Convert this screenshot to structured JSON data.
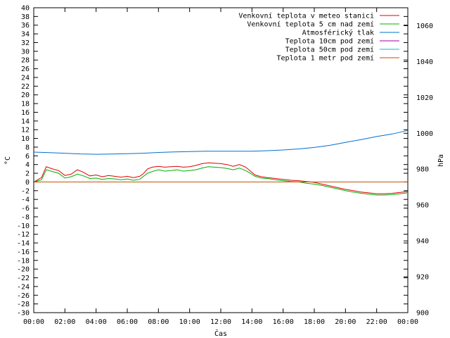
{
  "chart_data": {
    "type": "line",
    "xlabel": "Čas",
    "ylabel": "°C",
    "y2label": "hPa",
    "x_ticks": [
      "00:00",
      "02:00",
      "04:00",
      "06:00",
      "08:00",
      "10:00",
      "12:00",
      "14:00",
      "16:00",
      "18:00",
      "20:00",
      "22:00",
      "00:00"
    ],
    "xlim": [
      0,
      24
    ],
    "ylim": [
      -30,
      40
    ],
    "y_ticks": [
      40,
      38,
      36,
      34,
      32,
      30,
      28,
      26,
      24,
      22,
      20,
      18,
      16,
      14,
      12,
      10,
      8,
      6,
      4,
      2,
      0,
      -2,
      -4,
      -6,
      -8,
      -10,
      -12,
      -14,
      -16,
      -18,
      -20,
      -22,
      -24,
      -26,
      -28,
      -30
    ],
    "y2lim": [
      900,
      1070
    ],
    "y2_ticks": [
      1060,
      1040,
      1020,
      1000,
      980,
      960,
      940,
      920,
      900
    ],
    "grid": false,
    "legend_position": "top-right",
    "series": [
      {
        "name": "Venkovní teplota v meteo stanici",
        "color": "#e00000",
        "axis": "y",
        "x": [
          0,
          0.5,
          0.8,
          1.2,
          1.6,
          2,
          2.4,
          2.8,
          3.2,
          3.6,
          4,
          4.4,
          4.8,
          5.2,
          5.6,
          6,
          6.4,
          6.8,
          7,
          7.3,
          7.6,
          8,
          8.4,
          8.8,
          9.2,
          9.6,
          10,
          10.4,
          10.8,
          11.2,
          11.6,
          12,
          12.4,
          12.8,
          13.2,
          13.6,
          13.9,
          14.2,
          14.6,
          15,
          15.5,
          16,
          16.5,
          17,
          17.5,
          18,
          18.5,
          19,
          19.5,
          20,
          20.5,
          21,
          21.5,
          22,
          22.5,
          23,
          23.5,
          24
        ],
        "y": [
          0,
          1,
          3.5,
          3,
          2.6,
          1.5,
          1.8,
          2.8,
          2.2,
          1.4,
          1.6,
          1.2,
          1.5,
          1.3,
          1.1,
          1.3,
          1.0,
          1.3,
          1.8,
          3.0,
          3.4,
          3.6,
          3.4,
          3.5,
          3.6,
          3.4,
          3.5,
          3.8,
          4.2,
          4.4,
          4.3,
          4.2,
          4.0,
          3.6,
          4.0,
          3.4,
          2.5,
          1.6,
          1.2,
          1.0,
          0.8,
          0.6,
          0.4,
          0.3,
          0.1,
          -0.1,
          -0.5,
          -0.9,
          -1.3,
          -1.7,
          -2.0,
          -2.3,
          -2.5,
          -2.7,
          -2.7,
          -2.6,
          -2.4,
          -2.2
        ]
      },
      {
        "name": "Venkovní teplota 5 cm nad zemí",
        "color": "#00b000",
        "axis": "y",
        "x": [
          0,
          0.5,
          0.8,
          1.2,
          1.6,
          2,
          2.4,
          2.8,
          3.2,
          3.6,
          4,
          4.4,
          4.8,
          5.2,
          5.6,
          6,
          6.4,
          6.8,
          7,
          7.3,
          7.6,
          8,
          8.4,
          8.8,
          9.2,
          9.6,
          10,
          10.4,
          10.8,
          11.2,
          11.6,
          12,
          12.4,
          12.8,
          13.2,
          13.6,
          13.9,
          14.2,
          14.6,
          15,
          15.5,
          16,
          16.5,
          17,
          17.5,
          18,
          18.5,
          19,
          19.5,
          20,
          20.5,
          21,
          21.5,
          22,
          22.5,
          23,
          23.5,
          24
        ],
        "y": [
          0,
          0.5,
          2.8,
          2.4,
          2.0,
          0.9,
          1.2,
          1.8,
          1.4,
          0.8,
          0.9,
          0.6,
          0.8,
          0.7,
          0.5,
          0.7,
          0.4,
          0.6,
          1.2,
          2.0,
          2.4,
          2.8,
          2.5,
          2.6,
          2.8,
          2.5,
          2.6,
          2.8,
          3.2,
          3.5,
          3.4,
          3.3,
          3.1,
          2.8,
          3.2,
          2.6,
          2.0,
          1.3,
          0.9,
          0.8,
          0.5,
          0.3,
          0.1,
          0.0,
          -0.3,
          -0.5,
          -0.8,
          -1.2,
          -1.6,
          -2.0,
          -2.3,
          -2.6,
          -2.8,
          -3.0,
          -3.0,
          -2.9,
          -2.7,
          -2.5
        ]
      },
      {
        "name": "Atmosférický tlak",
        "color": "#0070d0",
        "axis": "y2",
        "x": [
          0,
          1,
          2,
          3,
          4,
          5,
          6,
          7,
          8,
          9,
          10,
          11,
          12,
          13,
          14,
          15,
          16,
          17,
          18,
          19,
          20,
          21,
          22,
          23,
          24
        ],
        "y": [
          989.5,
          989.2,
          988.9,
          988.5,
          988.3,
          988.4,
          988.6,
          988.9,
          989.3,
          989.6,
          989.8,
          990.0,
          990.0,
          990.0,
          990.0,
          990.3,
          990.7,
          991.3,
          992.1,
          993.3,
          994.9,
          996.5,
          998.2,
          999.6,
          1001.6
        ]
      },
      {
        "name": "Teplota 10cm pod zemí",
        "color": "#a000a0",
        "axis": "y",
        "x": [],
        "y": []
      },
      {
        "name": "Teplota 50cm pod zemí",
        "color": "#00c0c0",
        "axis": "y",
        "x": [],
        "y": []
      },
      {
        "name": "Teplota 1 metr pod zemí",
        "color": "#c05000",
        "axis": "y",
        "x": [
          0,
          24
        ],
        "y": [
          0,
          0
        ]
      }
    ]
  }
}
